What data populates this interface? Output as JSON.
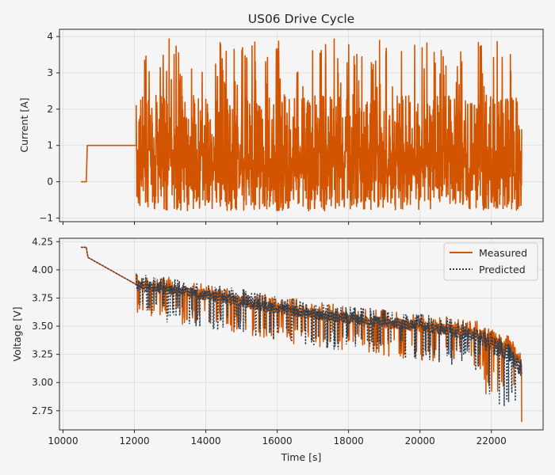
{
  "chart_data": [
    {
      "type": "line",
      "title": "US06 Drive Cycle",
      "xlabel": "",
      "ylabel": "Current [A]",
      "xlim": [
        9900,
        23450
      ],
      "ylim": [
        -1.1,
        4.2
      ],
      "xticks": [
        10000,
        12000,
        14000,
        16000,
        18000,
        20000,
        22000
      ],
      "yticks": [
        -1,
        0,
        1,
        2,
        3,
        4
      ],
      "ytick_labels": [
        "−1",
        "0",
        "1",
        "2",
        "3",
        "4"
      ],
      "grid": true,
      "color": "#d35400",
      "series": [
        {
          "name": "Current",
          "x": [
            10500,
            10650,
            10680,
            12050
          ],
          "y": [
            0,
            0,
            1,
            1
          ],
          "note": "followed by dense US06 drive-cycle oscillation from 12050 s to 22850 s, range about -0.8 to 3.95 A, peaks near 3.9 A"
        }
      ],
      "drive_cycle_range": [
        12050,
        22850
      ],
      "current_range": [
        -0.8,
        3.95
      ]
    },
    {
      "type": "line",
      "title": "",
      "xlabel": "Time [s]",
      "ylabel": "Voltage [V]",
      "xlim": [
        9900,
        23450
      ],
      "ylim": [
        2.58,
        4.28
      ],
      "xticks": [
        10000,
        12000,
        14000,
        16000,
        18000,
        20000,
        22000
      ],
      "yticks": [
        2.75,
        3.0,
        3.25,
        3.5,
        3.75,
        4.0,
        4.25
      ],
      "ytick_labels": [
        "2.75",
        "3.00",
        "3.25",
        "3.50",
        "3.75",
        "4.00",
        "4.25"
      ],
      "grid": true,
      "legend": "top-right",
      "series": [
        {
          "name": "Measured",
          "color": "#d35400",
          "style": "solid",
          "trend_x": [
            10500,
            10650,
            10700,
            12050,
            14000,
            16000,
            18000,
            20000,
            21500,
            22500,
            22850
          ],
          "trend_y": [
            4.2,
            4.2,
            4.11,
            3.87,
            3.78,
            3.66,
            3.57,
            3.5,
            3.45,
            3.3,
            3.15
          ],
          "min_value": 2.65
        },
        {
          "name": "Predicted",
          "color": "#2c3e50",
          "style": "dotted",
          "trend_x": [
            10500,
            10650,
            10700,
            12050,
            14000,
            16000,
            18000,
            20000,
            21500,
            22500,
            22850
          ],
          "trend_y": [
            4.2,
            4.2,
            4.11,
            3.87,
            3.78,
            3.66,
            3.57,
            3.5,
            3.42,
            3.26,
            3.1
          ]
        }
      ]
    }
  ]
}
